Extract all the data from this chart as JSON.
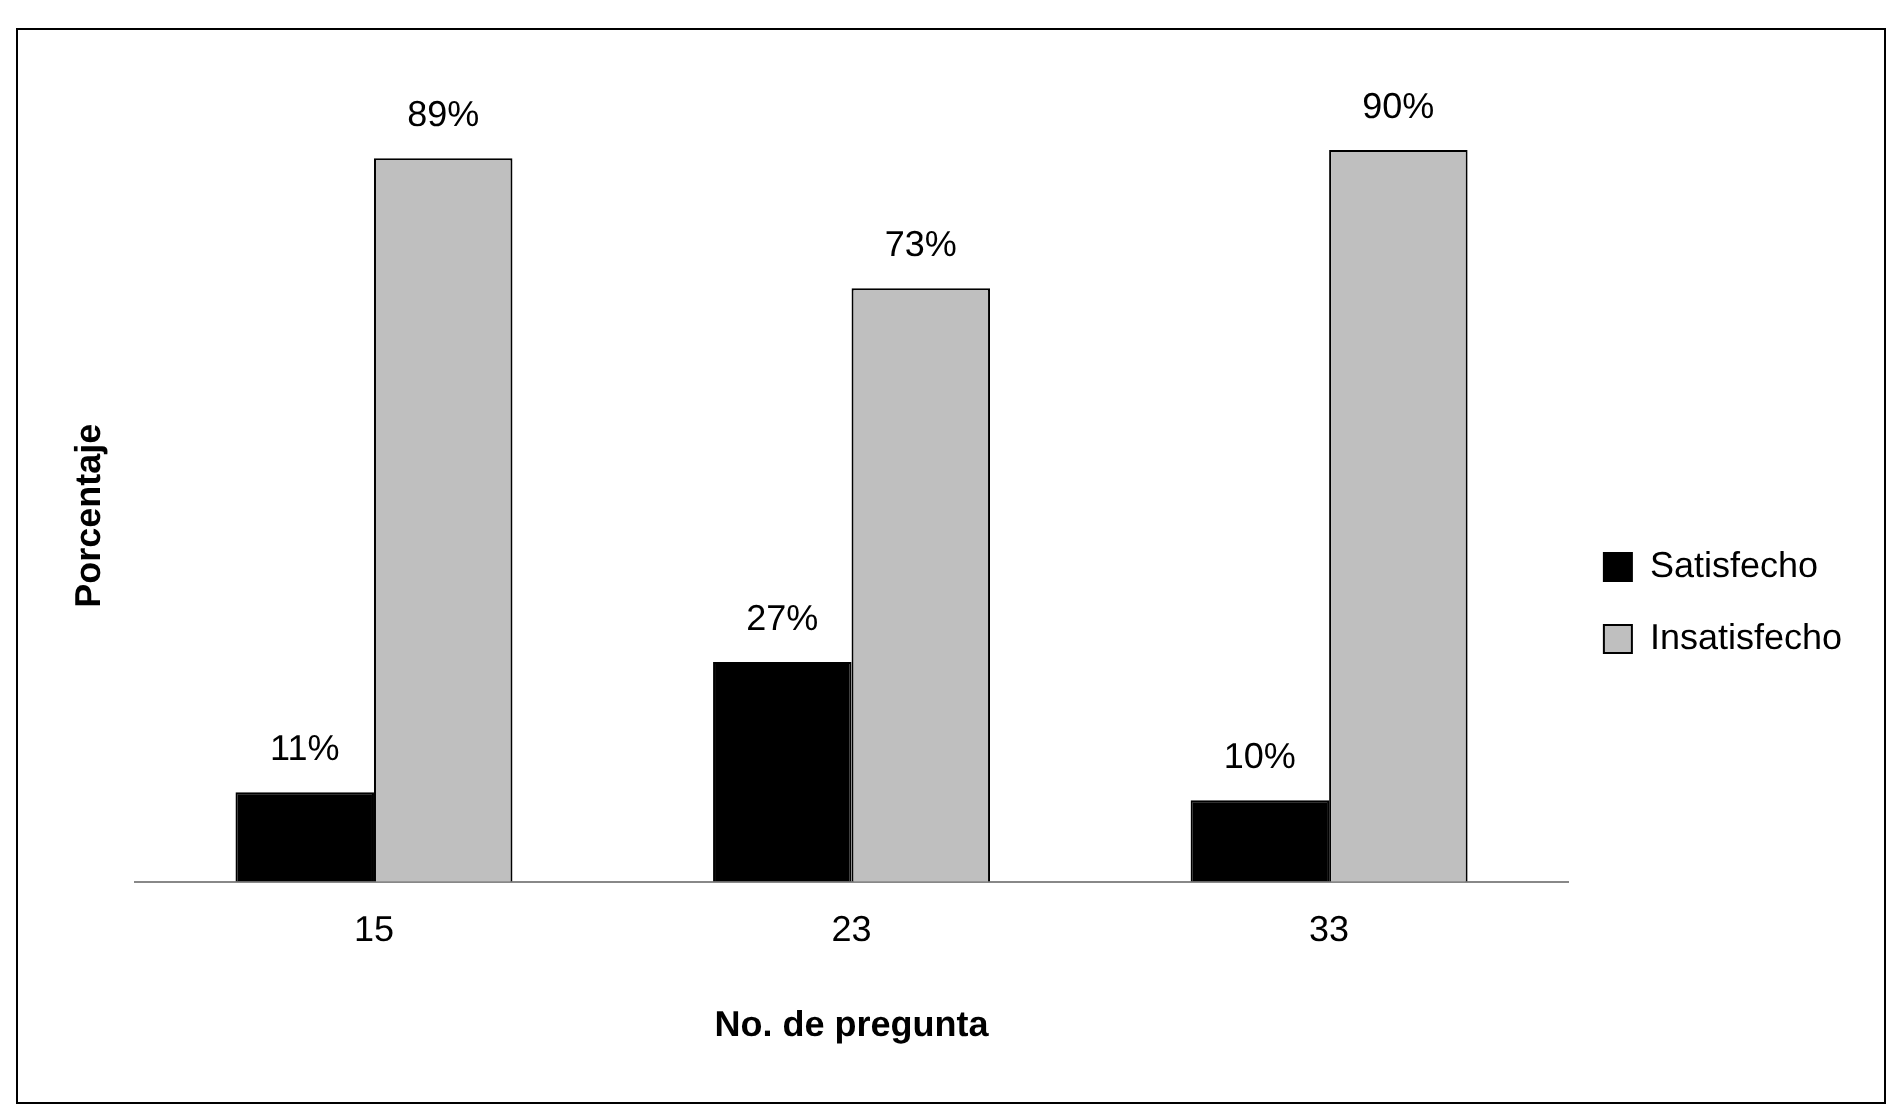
{
  "chart_data": {
    "type": "bar",
    "xlabel": "No. de pregunta",
    "ylabel": "Porcentaje",
    "categories": [
      "15",
      "23",
      "33"
    ],
    "series": [
      {
        "name": "Satisfecho",
        "color": "#000000",
        "values": [
          11,
          27,
          10
        ],
        "value_labels": [
          "11%",
          "27%",
          "10%"
        ]
      },
      {
        "name": "Insatisfecho",
        "color": "#bfbfbf",
        "values": [
          89,
          73,
          90
        ],
        "value_labels": [
          "89%",
          "73%",
          "90%"
        ]
      }
    ],
    "legend": "right",
    "grid": false
  }
}
